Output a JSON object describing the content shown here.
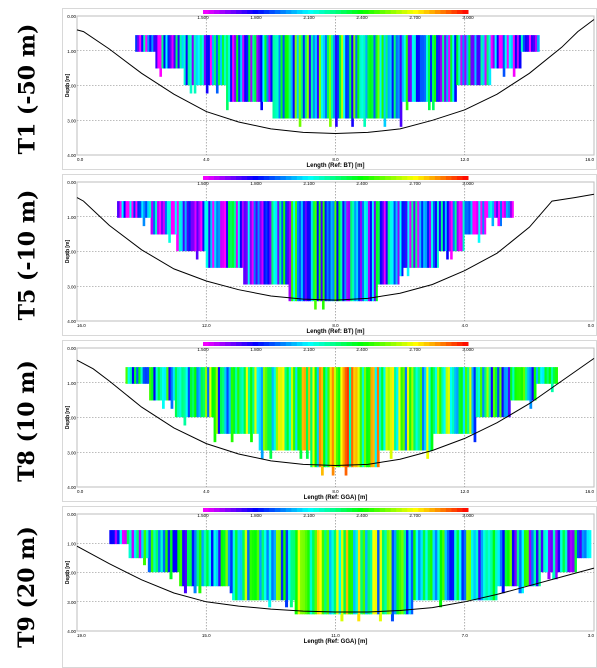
{
  "rows": [
    {
      "label": "T1 (-50 m)"
    },
    {
      "label": "T5 (-10 m)"
    },
    {
      "label": "T8 (10 m)"
    },
    {
      "label": "T9 (20 m)"
    }
  ],
  "colors": {
    "scale": [
      "#ff00ff",
      "#0000ff",
      "#00ffff",
      "#00ff00",
      "#ffff00",
      "#ff0000"
    ],
    "bed_line": "#000000",
    "grid": "#7a7a7a"
  },
  "chart_data": [
    {
      "type": "heatmap",
      "colorbar": {
        "ticks": [
          "1.500",
          "1.800",
          "2.100",
          "2.400",
          "2.700",
          "3.000"
        ],
        "min": 1.5,
        "max": 3.0
      },
      "ylabel": "Depth [m]",
      "yticks": [
        "0.00",
        "1.00",
        "2.00",
        "3.00",
        "4.00"
      ],
      "ylim": [
        0,
        4
      ],
      "xlabel": "Length (Ref: BT) [m]",
      "xticks": [
        "0.0",
        "4.0",
        "8.0",
        "12.0",
        "16.0"
      ],
      "xlim": [
        0,
        16
      ],
      "bed_profile": {
        "x": [
          0.0,
          0.2,
          1.0,
          2.0,
          3.0,
          4.0,
          5.0,
          6.0,
          7.0,
          8.0,
          9.0,
          10.0,
          11.0,
          12.0,
          13.0,
          14.0,
          15.0,
          15.5,
          16.0
        ],
        "depth": [
          0.4,
          0.45,
          0.95,
          1.65,
          2.25,
          2.75,
          3.05,
          3.25,
          3.35,
          3.38,
          3.35,
          3.25,
          3.0,
          2.7,
          2.25,
          1.65,
          0.9,
          0.45,
          0.1
        ]
      },
      "section": {
        "x_start": 1.8,
        "x_end": 14.3,
        "top": 0.55,
        "levels": [
          [
            1.8,
            14.3
          ],
          [
            2.4,
            13.7
          ],
          [
            3.3,
            12.8
          ],
          [
            4.6,
            11.7
          ],
          [
            6.0,
            10.0
          ]
        ],
        "dominant_value": 2.0
      }
    },
    {
      "type": "heatmap",
      "colorbar": {
        "ticks": [
          "1.500",
          "1.800",
          "2.100",
          "2.400",
          "2.700",
          "3.000"
        ],
        "min": 1.5,
        "max": 3.0
      },
      "ylabel": "Depth [m]",
      "yticks": [
        "0.00",
        "1.00",
        "2.00",
        "3.00",
        "4.00"
      ],
      "ylim": [
        0,
        4
      ],
      "xlabel": "Length (Ref: BT) [m]",
      "xticks": [
        "16.0",
        "12.0",
        "8.0",
        "4.0",
        "0.0"
      ],
      "xlim": [
        16,
        0
      ],
      "bed_profile": {
        "x": [
          16.0,
          15.8,
          15.0,
          14.0,
          13.0,
          12.0,
          11.0,
          10.0,
          9.0,
          8.0,
          7.0,
          6.0,
          5.0,
          4.0,
          3.0,
          2.0,
          1.3,
          0.6,
          0.0
        ],
        "depth": [
          0.45,
          0.55,
          1.25,
          1.95,
          2.5,
          2.85,
          3.1,
          3.28,
          3.37,
          3.4,
          3.35,
          3.2,
          2.95,
          2.55,
          2.05,
          1.3,
          0.55,
          0.45,
          0.35
        ]
      },
      "section": {
        "x_start": 14.7,
        "x_end": 2.5,
        "top": 0.55,
        "levels": [
          [
            14.7,
            2.5
          ],
          [
            13.7,
            3.3
          ],
          [
            12.9,
            4.0
          ],
          [
            12.0,
            4.8
          ],
          [
            10.8,
            6.0
          ],
          [
            9.4,
            6.7
          ]
        ],
        "dominant_value": 1.9
      }
    },
    {
      "type": "heatmap",
      "colorbar": {
        "ticks": [
          "1.500",
          "1.800",
          "2.100",
          "2.400",
          "2.700",
          "3.000"
        ],
        "min": 1.5,
        "max": 3.0
      },
      "ylabel": "Depth [m]",
      "yticks": [
        "0.00",
        "1.00",
        "2.00",
        "3.00",
        "4.00"
      ],
      "ylim": [
        0,
        4
      ],
      "xlabel": "Length (Ref: GGA) [m]",
      "xticks": [
        "0.0",
        "4.0",
        "8.0",
        "12.0",
        "16.0"
      ],
      "xlim": [
        0,
        16
      ],
      "bed_profile": {
        "x": [
          0.0,
          0.5,
          1.0,
          2.0,
          3.0,
          4.0,
          5.0,
          6.0,
          7.0,
          8.0,
          9.0,
          10.0,
          11.0,
          12.0,
          13.0,
          14.0,
          15.0,
          16.0
        ],
        "depth": [
          0.35,
          0.6,
          0.95,
          1.7,
          2.3,
          2.75,
          3.05,
          3.25,
          3.35,
          3.38,
          3.35,
          3.2,
          2.95,
          2.6,
          2.15,
          1.6,
          0.95,
          0.3
        ]
      },
      "section": {
        "x_start": 1.5,
        "x_end": 14.8,
        "top": 0.55,
        "levels": [
          [
            1.5,
            14.8
          ],
          [
            2.2,
            14.2
          ],
          [
            3.0,
            13.4
          ],
          [
            4.2,
            12.3
          ],
          [
            5.6,
            11.0
          ],
          [
            7.2,
            9.3
          ]
        ],
        "dominant_value": 2.3
      }
    },
    {
      "type": "heatmap",
      "colorbar": {
        "ticks": [
          "1.500",
          "1.800",
          "2.100",
          "2.400",
          "2.700",
          "3.000"
        ],
        "min": 1.5,
        "max": 3.0
      },
      "ylabel": "Depth [m]",
      "yticks": [
        "0.00",
        "1.00",
        "2.00",
        "3.00",
        "4.00"
      ],
      "ylim": [
        0,
        4
      ],
      "xlabel": "Length (Ref: GGA) [m]",
      "xticks": [
        "19.0",
        "15.0",
        "11.0",
        "7.0",
        "3.0"
      ],
      "xlim": [
        19,
        3
      ],
      "bed_profile": {
        "x": [
          19.0,
          18.0,
          17.0,
          16.0,
          15.0,
          14.0,
          13.0,
          12.0,
          11.0,
          10.0,
          9.0,
          8.0,
          7.0,
          6.0,
          5.0,
          4.0,
          3.0
        ],
        "depth": [
          1.1,
          1.7,
          2.25,
          2.7,
          3.0,
          3.15,
          3.25,
          3.32,
          3.35,
          3.35,
          3.3,
          3.2,
          3.0,
          2.75,
          2.45,
          2.15,
          1.85
        ]
      },
      "section": {
        "x_start": 18.0,
        "x_end": 3.1,
        "top": 0.55,
        "levels": [
          [
            18.0,
            3.1
          ],
          [
            17.4,
            3.1
          ],
          [
            16.8,
            3.5
          ],
          [
            15.8,
            4.6
          ],
          [
            14.2,
            6.0
          ],
          [
            12.2,
            8.6
          ]
        ],
        "dominant_value": 2.2
      }
    }
  ]
}
